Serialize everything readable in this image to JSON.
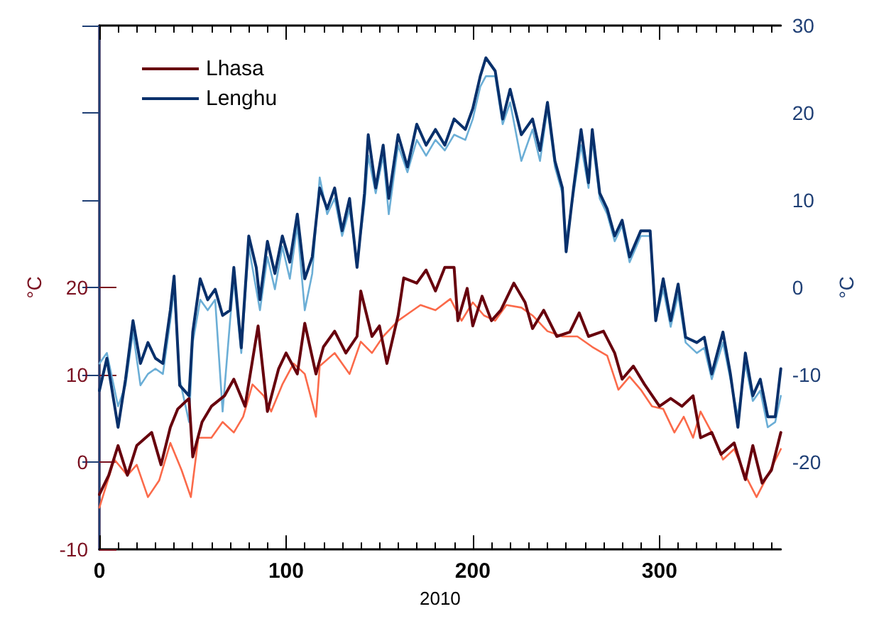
{
  "chart_data": {
    "type": "line",
    "xlabel": "2010",
    "ylabel": "°C",
    "y2label": "°C",
    "xlim": [
      0,
      365
    ],
    "xticks": [
      0,
      100,
      200,
      300
    ],
    "ylim": [
      -10,
      50
    ],
    "yticks": [
      -10,
      0,
      10,
      20
    ],
    "y2lim": [
      -30,
      30
    ],
    "y2ticks": [
      -20,
      -10,
      0,
      10,
      20,
      30
    ],
    "legend": "top left",
    "grid": false,
    "marker": "none",
    "line_style": "solid",
    "series": [
      {
        "name": "Lhasa",
        "color": "#67000d",
        "x": [
          0,
          5,
          10,
          15,
          20,
          28,
          33,
          38,
          42,
          48,
          50,
          55,
          60,
          67,
          72,
          78,
          85,
          90,
          96,
          100,
          106,
          110,
          116,
          120,
          126,
          132,
          138,
          140,
          146,
          150,
          154,
          160,
          163,
          170,
          175,
          180,
          185,
          190,
          192,
          197,
          200,
          205,
          210,
          215,
          222,
          228,
          232,
          238,
          245,
          252,
          257,
          262,
          270,
          276,
          280,
          286,
          292,
          300,
          306,
          312,
          318,
          322,
          328,
          333,
          340,
          346,
          350,
          355,
          360,
          365
        ],
        "values": [
          -3.7,
          -1.5,
          1.9,
          -1.5,
          1.9,
          3.4,
          -0.3,
          4.0,
          6.1,
          7.3,
          0.6,
          4.6,
          6.4,
          7.6,
          9.5,
          6.4,
          15.6,
          5.8,
          10.7,
          12.5,
          10.1,
          15.9,
          10.1,
          13.2,
          15.0,
          12.5,
          14.4,
          19.6,
          14.4,
          15.6,
          11.3,
          16.8,
          21.1,
          20.5,
          22.0,
          19.6,
          22.3,
          22.3,
          16.2,
          19.9,
          15.6,
          19.0,
          16.2,
          17.4,
          20.5,
          18.3,
          15.3,
          17.4,
          14.4,
          14.9,
          17.1,
          14.4,
          15.0,
          12.5,
          9.5,
          11.0,
          8.9,
          6.4,
          7.3,
          6.4,
          7.6,
          2.8,
          3.4,
          0.9,
          2.2,
          -2.0,
          1.9,
          -2.4,
          -0.9,
          3.4
        ]
      },
      {
        "color": "#fb6a4a",
        "x": [
          0,
          8,
          15,
          20,
          26,
          32,
          38,
          44,
          49,
          53,
          60,
          66,
          72,
          77,
          82,
          88,
          92,
          98,
          104,
          110,
          116,
          118,
          126,
          134,
          140,
          146,
          152,
          160,
          166,
          172,
          180,
          188,
          194,
          200,
          206,
          212,
          218,
          226,
          232,
          240,
          248,
          256,
          264,
          272,
          278,
          284,
          290,
          296,
          302,
          308,
          313,
          318,
          322,
          328,
          334,
          340,
          346,
          352,
          358,
          365
        ],
        "values": [
          -5.2,
          0.3,
          -1.5,
          -0.3,
          -4.0,
          -2.1,
          2.2,
          -0.9,
          -4.0,
          2.8,
          2.8,
          4.6,
          3.4,
          5.2,
          8.9,
          7.6,
          5.8,
          8.9,
          11.3,
          10.1,
          5.2,
          11.0,
          12.5,
          10.1,
          13.8,
          12.5,
          14.4,
          16.2,
          17.1,
          18.0,
          17.4,
          18.7,
          16.2,
          18.3,
          16.8,
          16.2,
          18.0,
          17.7,
          16.8,
          15.0,
          14.4,
          14.4,
          13.2,
          12.2,
          8.3,
          9.8,
          8.3,
          6.4,
          6.1,
          3.4,
          5.2,
          2.8,
          5.8,
          3.4,
          0.3,
          1.5,
          -1.5,
          -4.0,
          -1.5,
          1.5
        ]
      },
      {
        "name": "Lenghu",
        "color": "#08306b",
        "axis": "y2",
        "x": [
          0,
          4,
          10,
          14,
          18,
          22,
          26,
          30,
          34,
          38,
          40,
          43,
          48,
          50,
          54,
          58,
          62,
          66,
          70,
          72,
          76,
          80,
          84,
          86,
          90,
          94,
          98,
          102,
          106,
          110,
          114,
          118,
          122,
          126,
          130,
          134,
          138,
          142,
          144,
          148,
          152,
          155,
          160,
          165,
          170,
          175,
          180,
          185,
          190,
          196,
          200,
          204,
          207,
          212,
          216,
          220,
          226,
          232,
          236,
          240,
          244,
          248,
          250,
          254,
          258,
          262,
          264,
          268,
          272,
          276,
          280,
          284,
          290,
          295,
          298,
          302,
          306,
          310,
          314,
          320,
          324,
          328,
          334,
          338,
          342,
          346,
          350,
          354,
          358,
          362,
          365
        ],
        "values": [
          -11.8,
          -8.1,
          -16.0,
          -10.5,
          -3.8,
          -8.7,
          -6.3,
          -8.1,
          -8.7,
          -2.6,
          1.3,
          -11.2,
          -12.4,
          -5.1,
          1.0,
          -1.4,
          -0.2,
          -3.2,
          -2.6,
          2.3,
          -6.9,
          5.9,
          2.3,
          -1.4,
          5.3,
          1.6,
          5.9,
          2.9,
          8.4,
          1.0,
          3.5,
          11.4,
          9.0,
          11.4,
          6.5,
          10.2,
          2.3,
          10.8,
          17.5,
          11.4,
          16.3,
          10.2,
          17.5,
          13.8,
          18.7,
          16.3,
          18.1,
          16.3,
          19.3,
          18.1,
          20.5,
          24.2,
          26.3,
          24.8,
          19.3,
          22.7,
          17.5,
          19.3,
          15.7,
          21.2,
          14.5,
          11.4,
          4.1,
          11.4,
          18.1,
          12.0,
          18.1,
          10.8,
          9.0,
          5.9,
          7.7,
          3.5,
          6.5,
          6.5,
          -3.8,
          1.0,
          -3.8,
          0.4,
          -5.7,
          -6.3,
          -5.7,
          -9.9,
          -5.1,
          -9.9,
          -16.0,
          -7.5,
          -12.4,
          -10.5,
          -14.8,
          -14.8,
          -9.3
        ]
      },
      {
        "color": "#6baed6",
        "axis": "y2",
        "x": [
          0,
          4,
          10,
          14,
          18,
          22,
          26,
          30,
          34,
          38,
          40,
          43,
          48,
          50,
          54,
          58,
          62,
          66,
          70,
          72,
          76,
          80,
          84,
          86,
          90,
          94,
          98,
          102,
          106,
          110,
          114,
          118,
          122,
          126,
          130,
          134,
          138,
          142,
          144,
          148,
          152,
          155,
          160,
          165,
          170,
          175,
          180,
          185,
          190,
          196,
          200,
          204,
          207,
          212,
          216,
          220,
          226,
          232,
          236,
          240,
          244,
          248,
          250,
          254,
          258,
          262,
          264,
          268,
          272,
          276,
          280,
          284,
          290,
          295,
          298,
          302,
          306,
          310,
          314,
          320,
          324,
          328,
          334,
          338,
          342,
          346,
          350,
          354,
          358,
          362,
          365
        ],
        "values": [
          -8.7,
          -7.5,
          -13.6,
          -11.2,
          -5.1,
          -11.2,
          -9.9,
          -9.3,
          -9.9,
          -3.8,
          -0.2,
          -10.5,
          -15.4,
          -6.3,
          -1.4,
          -2.6,
          -1.4,
          -14.2,
          -3.8,
          1.0,
          -7.5,
          4.7,
          -0.2,
          -2.6,
          3.5,
          -0.2,
          4.7,
          1.0,
          7.1,
          -2.6,
          1.6,
          12.6,
          8.4,
          10.2,
          5.9,
          9.0,
          2.9,
          9.6,
          15.1,
          10.8,
          15.1,
          8.4,
          16.3,
          13.2,
          16.9,
          15.1,
          16.9,
          15.7,
          17.5,
          16.9,
          19.3,
          23.0,
          24.2,
          24.2,
          18.7,
          21.2,
          14.5,
          18.1,
          14.5,
          20.5,
          13.8,
          10.8,
          5.3,
          10.8,
          16.3,
          11.4,
          16.9,
          10.2,
          8.4,
          5.3,
          7.1,
          2.9,
          5.9,
          5.9,
          -3.8,
          -0.2,
          -4.5,
          -0.8,
          -6.3,
          -7.5,
          -6.9,
          -10.5,
          -6.3,
          -10.5,
          -14.8,
          -8.7,
          -13.0,
          -11.8,
          -16.0,
          -15.4,
          -12.4
        ]
      }
    ]
  }
}
